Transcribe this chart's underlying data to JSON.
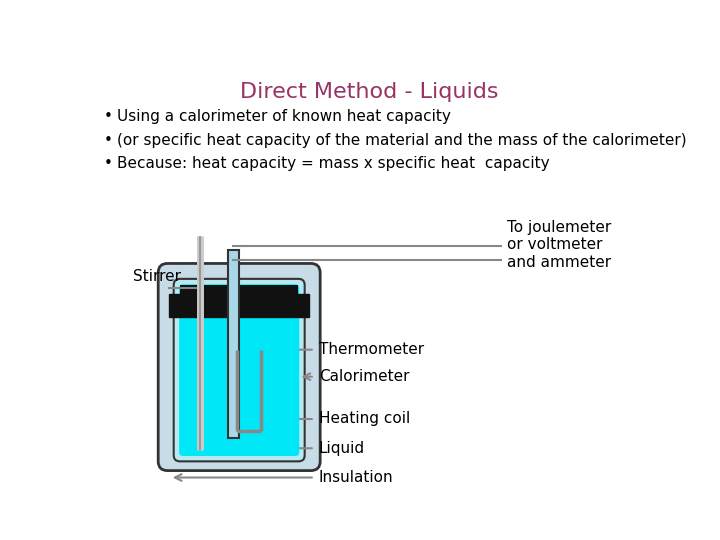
{
  "title": "Direct Method - Liquids",
  "title_color": "#993366",
  "title_fontsize": 16,
  "bullet1": "Using a calorimeter of known heat capacity",
  "bullet2": "(or specific heat capacity of the material and the mass of the calorimeter)",
  "bullet3": "Because: heat capacity = mass x specific heat  capacity",
  "label_stirrer": "Stirrer",
  "label_joulemeter": "To joulemeter\nor voltmeter\nand ammeter",
  "label_thermometer": "Thermometer",
  "label_calorimeter": "Calorimeter",
  "label_heating_coil": "Heating coil",
  "label_liquid": "Liquid",
  "label_insulation": "Insulation",
  "bg_color": "#ffffff",
  "text_color": "#000000",
  "liquid_color": "#00e8f8",
  "calor_inner_color": "#b8e8f0",
  "calor_outer_color": "#c8dce8",
  "lid_color": "#111111",
  "therm_color": "#a8d8e8",
  "arrow_color": "#888888",
  "wire_color": "#888888",
  "edge_color": "#333333"
}
